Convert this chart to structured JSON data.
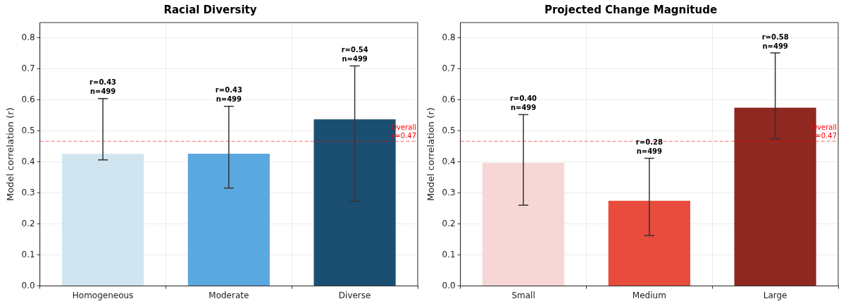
{
  "chart_data": [
    {
      "type": "bar",
      "title": "Racial Diversity",
      "ylabel": "Model correlation (r)",
      "categories": [
        "Homogeneous",
        "Moderate",
        "Diverse"
      ],
      "values": [
        0.426,
        0.427,
        0.538
      ],
      "colors": [
        "#d1e5f0",
        "#5aa8e0",
        "#1b4f72"
      ],
      "errors": [
        [
          0.407,
          0.605
        ],
        [
          0.316,
          0.58
        ],
        [
          0.273,
          0.71
        ]
      ],
      "annotations": [
        {
          "text": "r=0.43\nn=499",
          "x": "Homogeneous",
          "y": 0.605
        },
        {
          "text": "r=0.43\nn=499",
          "x": "Moderate",
          "y": 0.58
        },
        {
          "text": "r=0.54\nn=499",
          "x": "Diverse",
          "y": 0.71
        }
      ],
      "ylim": [
        0,
        0.85
      ],
      "yticks": [
        {
          "value": 0,
          "label": "0.0"
        },
        0.1,
        0.2,
        0.3,
        0.4,
        0.5,
        0.6,
        0.7,
        0.8
      ],
      "grid": true,
      "ref_lines": [
        {
          "axis": "y",
          "value": 0.467,
          "label": "Overall\nr=0.47",
          "color": "#ff0000",
          "line_style": "dashed"
        }
      ]
    },
    {
      "type": "bar",
      "title": "Projected Change Magnitude",
      "ylabel": "Model correlation (r)",
      "categories": [
        "Small",
        "Medium",
        "Large"
      ],
      "values": [
        0.397,
        0.275,
        0.575
      ],
      "colors": [
        "#f7d6d6",
        "#e74c3c",
        "#8e2820"
      ],
      "errors": [
        [
          0.261,
          0.553
        ],
        [
          0.163,
          0.412
        ],
        [
          0.475,
          0.752
        ]
      ],
      "annotations": [
        {
          "text": "r=0.40\nn=499",
          "x": "Small",
          "y": 0.553
        },
        {
          "text": "r=0.28\nn=499",
          "x": "Medium",
          "y": 0.412
        },
        {
          "text": "r=0.58\nn=499",
          "x": "Large",
          "y": 0.752
        }
      ],
      "ylim": [
        0,
        0.85
      ],
      "yticks": [
        {
          "value": 0,
          "label": "0.0"
        },
        0.1,
        0.2,
        0.3,
        0.4,
        0.5,
        0.6,
        0.7,
        0.8
      ],
      "grid": true,
      "ref_lines": [
        {
          "axis": "y",
          "value": 0.467,
          "label": "Overall\nr=0.47",
          "color": "#ff0000",
          "line_style": "dashed"
        }
      ]
    }
  ]
}
